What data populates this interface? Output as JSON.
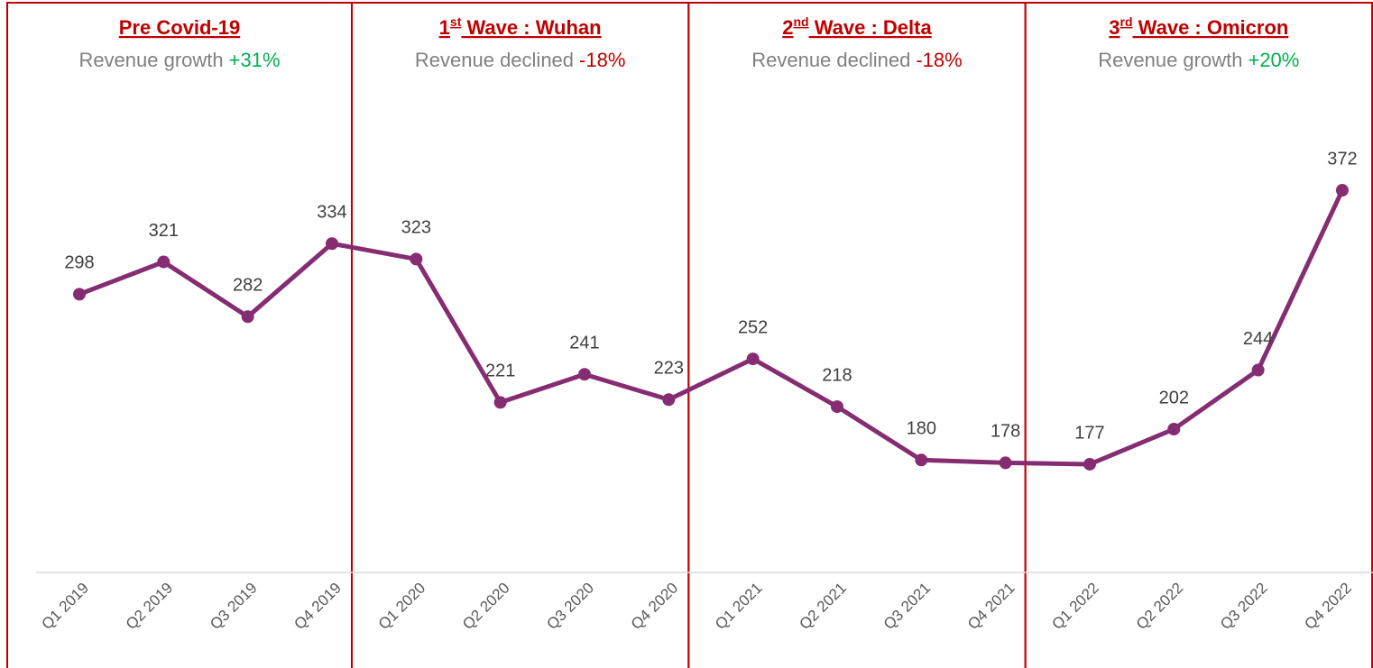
{
  "chart_data": {
    "type": "line",
    "categories": [
      "Q1 2019",
      "Q2 2019",
      "Q3 2019",
      "Q4 2019",
      "Q1 2020",
      "Q2 2020",
      "Q3 2020",
      "Q4 2020",
      "Q1 2021",
      "Q2 2021",
      "Q3 2021",
      "Q4 2021",
      "Q1 2022",
      "Q2 2022",
      "Q3 2022",
      "Q4 2022"
    ],
    "series": [
      {
        "color": "#862c72",
        "values": [
          298,
          321,
          282,
          334,
          323,
          221,
          241,
          223,
          252,
          218,
          180,
          178,
          177,
          202,
          244,
          372
        ]
      }
    ],
    "ylim": [
      100,
      500
    ],
    "sections": [
      {
        "title": [
          "Pre Covid-19"
        ],
        "label": "Revenue growth",
        "change": "+31%",
        "change_color": "#00b050"
      },
      {
        "title": [
          "1",
          "st",
          " Wave : Wuhan"
        ],
        "label": "Revenue declined",
        "change": "-18%",
        "change_color": "#c00000"
      },
      {
        "title": [
          "2",
          "nd",
          " Wave : Delta"
        ],
        "label": "Revenue declined",
        "change": "-18%",
        "change_color": "#c00000"
      },
      {
        "title": [
          "3",
          "rd",
          " Wave : Omicron"
        ],
        "label": "Revenue growth",
        "change": "+20%",
        "change_color": "#00b050"
      }
    ]
  }
}
